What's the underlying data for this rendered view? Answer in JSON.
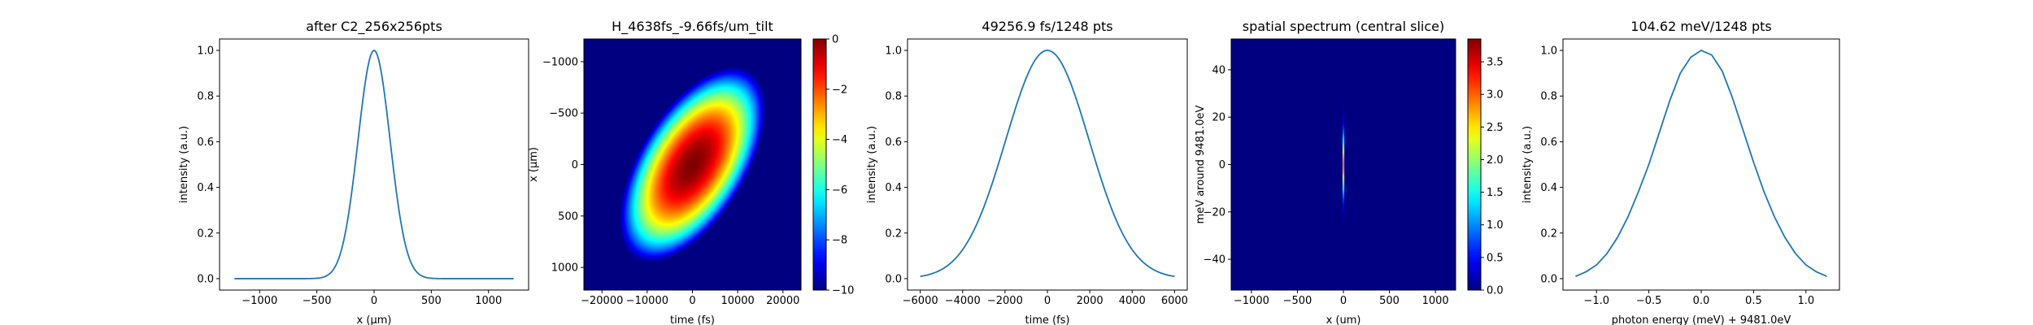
{
  "chart_data": [
    {
      "type": "line",
      "title": "after C2_256x256pts",
      "xlabel": "x (μm)",
      "ylabel": "intensity (a.u.)",
      "xlim": [
        -1350,
        1350
      ],
      "ylim": [
        -0.05,
        1.05
      ],
      "xticks": [
        -1000,
        -500,
        0,
        500,
        1000
      ],
      "xtick_labels": [
        "−1000",
        "−500",
        "0",
        "500",
        "1000"
      ],
      "yticks": [
        0.0,
        0.2,
        0.4,
        0.6,
        0.8,
        1.0
      ],
      "ytick_labels": [
        "0.0",
        "0.2",
        "0.4",
        "0.6",
        "0.8",
        "1.0"
      ],
      "line_color": "#1f77b4",
      "series": [
        {
          "shape": "gaussian",
          "x_range": [
            -1220,
            1220
          ],
          "center": 0,
          "fwhm": 330,
          "peak": 1.0
        }
      ]
    },
    {
      "type": "heatmap",
      "title": "H_4638fs_-9.66fs/um_tilt",
      "xlabel": "time (fs)",
      "ylabel": "x (μm)",
      "xlim": [
        -24000,
        24000
      ],
      "ylim": [
        -1220,
        1220
      ],
      "y_inverted": true,
      "xticks": [
        -20000,
        -10000,
        0,
        10000,
        20000
      ],
      "xtick_labels": [
        "−20000",
        "−10000",
        "0",
        "10000",
        "20000"
      ],
      "yticks": [
        -1000,
        -500,
        0,
        500,
        1000
      ],
      "ytick_labels": [
        "−1000",
        "−500",
        "0",
        "500",
        "1000"
      ],
      "colormap": "jet",
      "background": "#00007f",
      "tilt_fs_per_um": -9.66,
      "time_fwhm_fs": 4638,
      "x_fwhm_um": 330,
      "colorbar": {
        "range": [
          -10,
          0
        ],
        "ticks": [
          0,
          -2,
          -4,
          -6,
          -8,
          -10
        ],
        "tick_labels": [
          "0",
          "−2",
          "−4",
          "−6",
          "−8",
          "−10"
        ]
      }
    },
    {
      "type": "line",
      "title": "49256.9 fs/1248 pts",
      "xlabel": "time (fs)",
      "ylabel": "intensity (a.u.)",
      "xlim": [
        -6600,
        6600
      ],
      "ylim": [
        -0.05,
        1.05
      ],
      "xticks": [
        -6000,
        -4000,
        -2000,
        0,
        2000,
        4000,
        6000
      ],
      "xtick_labels": [
        "−6000",
        "−4000",
        "−2000",
        "0",
        "2000",
        "4000",
        "6000"
      ],
      "yticks": [
        0.0,
        0.2,
        0.4,
        0.6,
        0.8,
        1.0
      ],
      "ytick_labels": [
        "0.0",
        "0.2",
        "0.4",
        "0.6",
        "0.8",
        "1.0"
      ],
      "line_color": "#1f77b4",
      "series": [
        {
          "shape": "gaussian",
          "x_range": [
            -6000,
            6000
          ],
          "center": 0,
          "fwhm": 4638,
          "peak": 1.0
        }
      ]
    },
    {
      "type": "heatmap",
      "title": "spatial spectrum (central slice)",
      "xlabel": "x (um)",
      "ylabel": "meV around 9481.0eV",
      "xlim": [
        -1220,
        1220
      ],
      "ylim": [
        -53,
        53
      ],
      "xticks": [
        -1000,
        -500,
        0,
        500,
        1000
      ],
      "xtick_labels": [
        "−1000",
        "−500",
        "0",
        "500",
        "1000"
      ],
      "yticks": [
        40,
        20,
        0,
        -20,
        -40
      ],
      "ytick_labels": [
        "40",
        "20",
        "0",
        "−20",
        "−40"
      ],
      "colormap": "jet",
      "background": "#00007f",
      "colorbar": {
        "range": [
          0,
          3.85
        ],
        "ticks": [
          0.0,
          0.5,
          1.0,
          1.5,
          2.0,
          2.5,
          3.0,
          3.5
        ],
        "tick_labels": [
          "0.0",
          "0.5",
          "1.0",
          "1.5",
          "2.0",
          "2.5",
          "3.0",
          "3.5"
        ]
      }
    },
    {
      "type": "line",
      "title": "104.62 meV/1248 pts",
      "xlabel": "photon energy (meV) + 9481.0eV",
      "ylabel": "intensity (a.u.)",
      "xlim": [
        -1.32,
        1.32
      ],
      "ylim": [
        -0.05,
        1.05
      ],
      "xticks": [
        -1.0,
        -0.5,
        0.0,
        0.5,
        1.0
      ],
      "xtick_labels": [
        "−1.0",
        "−0.5",
        "0.0",
        "0.5",
        "1.0"
      ],
      "yticks": [
        0.0,
        0.2,
        0.4,
        0.6,
        0.8,
        1.0
      ],
      "ytick_labels": [
        "0.0",
        "0.2",
        "0.4",
        "0.6",
        "0.8",
        "1.0"
      ],
      "line_color": "#1f77b4",
      "series": [
        {
          "x": [
            -1.2,
            -1.1,
            -1.0,
            -0.9,
            -0.8,
            -0.7,
            -0.6,
            -0.5,
            -0.4,
            -0.3,
            -0.2,
            -0.1,
            0.0,
            0.1,
            0.2,
            0.3,
            0.4,
            0.5,
            0.6,
            0.7,
            0.8,
            0.9,
            1.0,
            1.1,
            1.2
          ],
          "y": [
            0.01,
            0.03,
            0.06,
            0.11,
            0.18,
            0.27,
            0.38,
            0.5,
            0.64,
            0.78,
            0.9,
            0.97,
            1.0,
            0.98,
            0.91,
            0.79,
            0.65,
            0.51,
            0.38,
            0.27,
            0.18,
            0.11,
            0.06,
            0.03,
            0.01
          ]
        }
      ]
    }
  ]
}
